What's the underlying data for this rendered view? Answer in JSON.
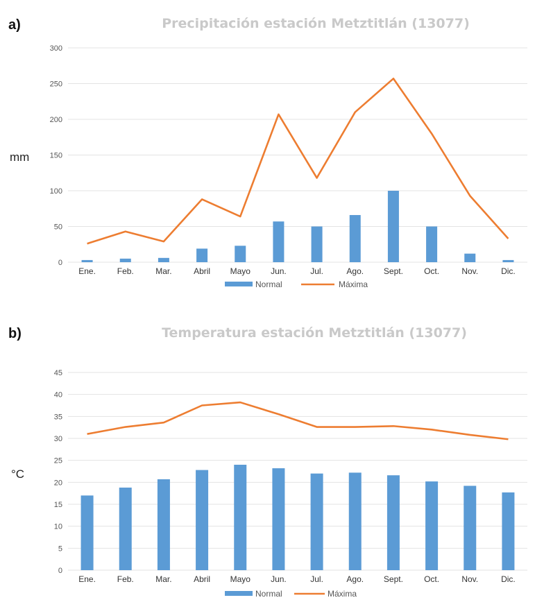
{
  "colors": {
    "normal": "#5b9bd5",
    "maxima": "#ed7d31",
    "title": "#c9c9c9"
  },
  "chart_data": [
    {
      "id": "a",
      "type": "bar",
      "panel_label": "a)",
      "title": "Precipitación estación Metztitlán (13077)",
      "ylabel": "mm",
      "xlabel": "",
      "ylim": [
        0,
        300
      ],
      "yticks": [
        0,
        50,
        100,
        150,
        200,
        250,
        300
      ],
      "grid": true,
      "legend_position": "bottom",
      "categories": [
        "Ene.",
        "Feb.",
        "Mar.",
        "Abril",
        "Mayo",
        "Jun.",
        "Jul.",
        "Ago.",
        "Sept.",
        "Oct.",
        "Nov.",
        "Dic."
      ],
      "series": [
        {
          "name": "Normal",
          "type": "bar",
          "values": [
            3,
            5,
            6,
            19,
            23,
            57,
            50,
            66,
            100,
            50,
            12,
            3
          ]
        },
        {
          "name": "Máxima",
          "type": "line",
          "values": [
            26,
            43,
            29,
            88,
            64,
            207,
            118,
            210,
            257,
            180,
            93,
            33
          ]
        }
      ]
    },
    {
      "id": "b",
      "type": "bar",
      "panel_label": "b)",
      "title": "Temperatura estación Metztitlán (13077)",
      "ylabel": "°C",
      "xlabel": "",
      "ylim": [
        0,
        45
      ],
      "yticks": [
        0,
        5,
        10,
        15,
        20,
        25,
        30,
        35,
        40,
        45
      ],
      "grid": true,
      "legend_position": "bottom",
      "categories": [
        "Ene.",
        "Feb.",
        "Mar.",
        "Abril",
        "Mayo",
        "Jun.",
        "Jul.",
        "Ago.",
        "Sept.",
        "Oct.",
        "Nov.",
        "Dic."
      ],
      "series": [
        {
          "name": "Normal",
          "type": "bar",
          "values": [
            17.0,
            18.8,
            20.7,
            22.8,
            24.0,
            23.2,
            22.0,
            22.2,
            21.6,
            20.2,
            19.2,
            17.7
          ]
        },
        {
          "name": "Máxima",
          "type": "line",
          "values": [
            31.0,
            32.6,
            33.6,
            37.5,
            38.2,
            35.5,
            32.6,
            32.6,
            32.8,
            32.0,
            30.8,
            29.8
          ]
        }
      ]
    }
  ]
}
